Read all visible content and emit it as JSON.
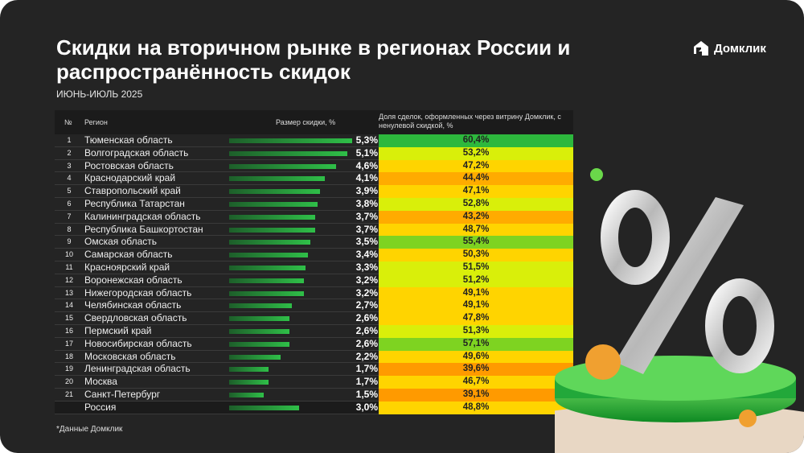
{
  "title": "Скидки на вторичном рынке в регионах России и распространённость скидок",
  "subtitle": "ИЮНЬ-ИЮЛЬ 2025",
  "brand": "Домклик",
  "footnote": "*Данные Домклик",
  "chart_data": {
    "type": "table",
    "columns": {
      "num": "№",
      "region": "Регион",
      "discount": "Размер скидки, %",
      "share": "Доля сделок, оформленных через витрину Домклик, с ненулевой скидкой, %"
    },
    "rows": [
      {
        "num": "1",
        "region": "Тюменская область",
        "discount": 5.3,
        "discount_label": "5,3%",
        "share": 60.4,
        "share_label": "60,4%"
      },
      {
        "num": "2",
        "region": "Волгоградская область",
        "discount": 5.1,
        "discount_label": "5,1%",
        "share": 53.2,
        "share_label": "53,2%"
      },
      {
        "num": "3",
        "region": "Ростовская область",
        "discount": 4.6,
        "discount_label": "4,6%",
        "share": 47.2,
        "share_label": "47,2%"
      },
      {
        "num": "4",
        "region": "Краснодарский край",
        "discount": 4.1,
        "discount_label": "4,1%",
        "share": 44.4,
        "share_label": "44,4%"
      },
      {
        "num": "5",
        "region": "Ставропольский край",
        "discount": 3.9,
        "discount_label": "3,9%",
        "share": 47.1,
        "share_label": "47,1%"
      },
      {
        "num": "6",
        "region": "Республика Татарстан",
        "discount": 3.8,
        "discount_label": "3,8%",
        "share": 52.8,
        "share_label": "52,8%"
      },
      {
        "num": "7",
        "region": "Калининградская область",
        "discount": 3.7,
        "discount_label": "3,7%",
        "share": 43.2,
        "share_label": "43,2%"
      },
      {
        "num": "8",
        "region": "Республика Башкортостан",
        "discount": 3.7,
        "discount_label": "3,7%",
        "share": 48.7,
        "share_label": "48,7%"
      },
      {
        "num": "9",
        "region": "Омская область",
        "discount": 3.5,
        "discount_label": "3,5%",
        "share": 55.4,
        "share_label": "55,4%"
      },
      {
        "num": "10",
        "region": "Самарская область",
        "discount": 3.4,
        "discount_label": "3,4%",
        "share": 50.3,
        "share_label": "50,3%"
      },
      {
        "num": "11",
        "region": "Красноярский край",
        "discount": 3.3,
        "discount_label": "3,3%",
        "share": 51.5,
        "share_label": "51,5%"
      },
      {
        "num": "12",
        "region": "Воронежская область",
        "discount": 3.2,
        "discount_label": "3,2%",
        "share": 51.2,
        "share_label": "51,2%"
      },
      {
        "num": "13",
        "region": "Нижегородская область",
        "discount": 3.2,
        "discount_label": "3,2%",
        "share": 49.1,
        "share_label": "49,1%"
      },
      {
        "num": "14",
        "region": "Челябинская область",
        "discount": 2.7,
        "discount_label": "2,7%",
        "share": 49.1,
        "share_label": "49,1%"
      },
      {
        "num": "15",
        "region": "Свердловская область",
        "discount": 2.6,
        "discount_label": "2,6%",
        "share": 47.8,
        "share_label": "47,8%"
      },
      {
        "num": "16",
        "region": "Пермский край",
        "discount": 2.6,
        "discount_label": "2,6%",
        "share": 51.3,
        "share_label": "51,3%"
      },
      {
        "num": "17",
        "region": "Новосибирская область",
        "discount": 2.6,
        "discount_label": "2,6%",
        "share": 57.1,
        "share_label": "57,1%"
      },
      {
        "num": "18",
        "region": "Московская область",
        "discount": 2.2,
        "discount_label": "2,2%",
        "share": 49.6,
        "share_label": "49,6%"
      },
      {
        "num": "19",
        "region": "Ленинградская область",
        "discount": 1.7,
        "discount_label": "1,7%",
        "share": 39.6,
        "share_label": "39,6%"
      },
      {
        "num": "20",
        "region": "Москва",
        "discount": 1.7,
        "discount_label": "1,7%",
        "share": 46.7,
        "share_label": "46,7%"
      },
      {
        "num": "21",
        "region": "Санкт-Петербург",
        "discount": 1.5,
        "discount_label": "1,5%",
        "share": 39.1,
        "share_label": "39,1%"
      },
      {
        "num": "",
        "region": "Россия",
        "discount": 3.0,
        "discount_label": "3,0%",
        "share": 48.8,
        "share_label": "48,8%"
      }
    ],
    "bar_color": "#2fbf48",
    "share_colors": {
      "high": "#2db83d",
      "mid_high": "#d4ee0b",
      "mid": "#ffd400",
      "low": "#ffa200"
    }
  }
}
